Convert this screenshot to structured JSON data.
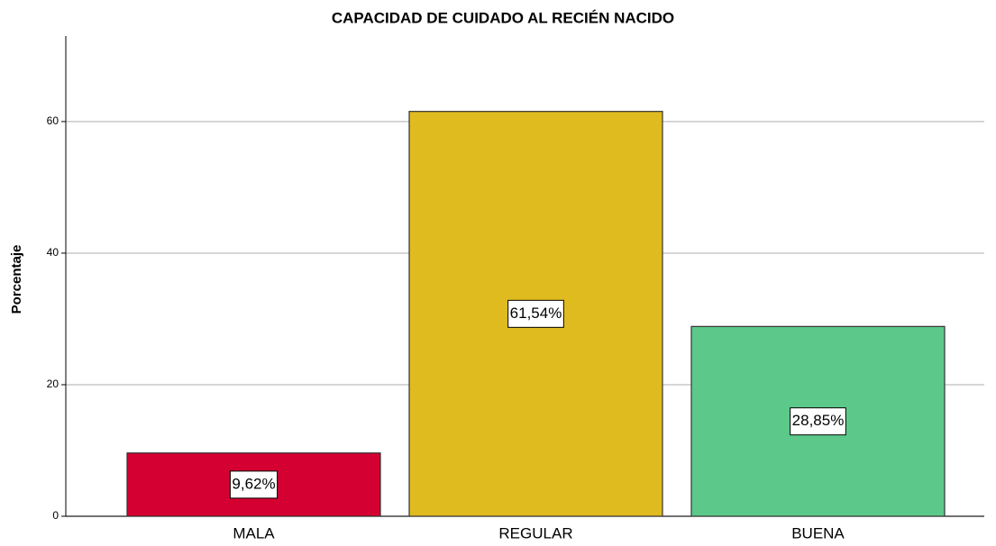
{
  "chart_data": {
    "type": "bar",
    "title": "CAPACIDAD DE CUIDADO AL RECIÉN NACIDO",
    "y_label": "Porcentaje",
    "categories": [
      "MALA",
      "REGULAR",
      "BUENA"
    ],
    "values": [
      9.62,
      61.54,
      28.85
    ],
    "value_labels": [
      "9,62%",
      "61,54%",
      "28,85%"
    ],
    "colors": [
      "#d50032",
      "#e0bb1f",
      "#5cc98a"
    ],
    "ylim": [
      0,
      73
    ],
    "yticks": [
      0,
      20,
      40,
      60
    ],
    "grid": true
  }
}
